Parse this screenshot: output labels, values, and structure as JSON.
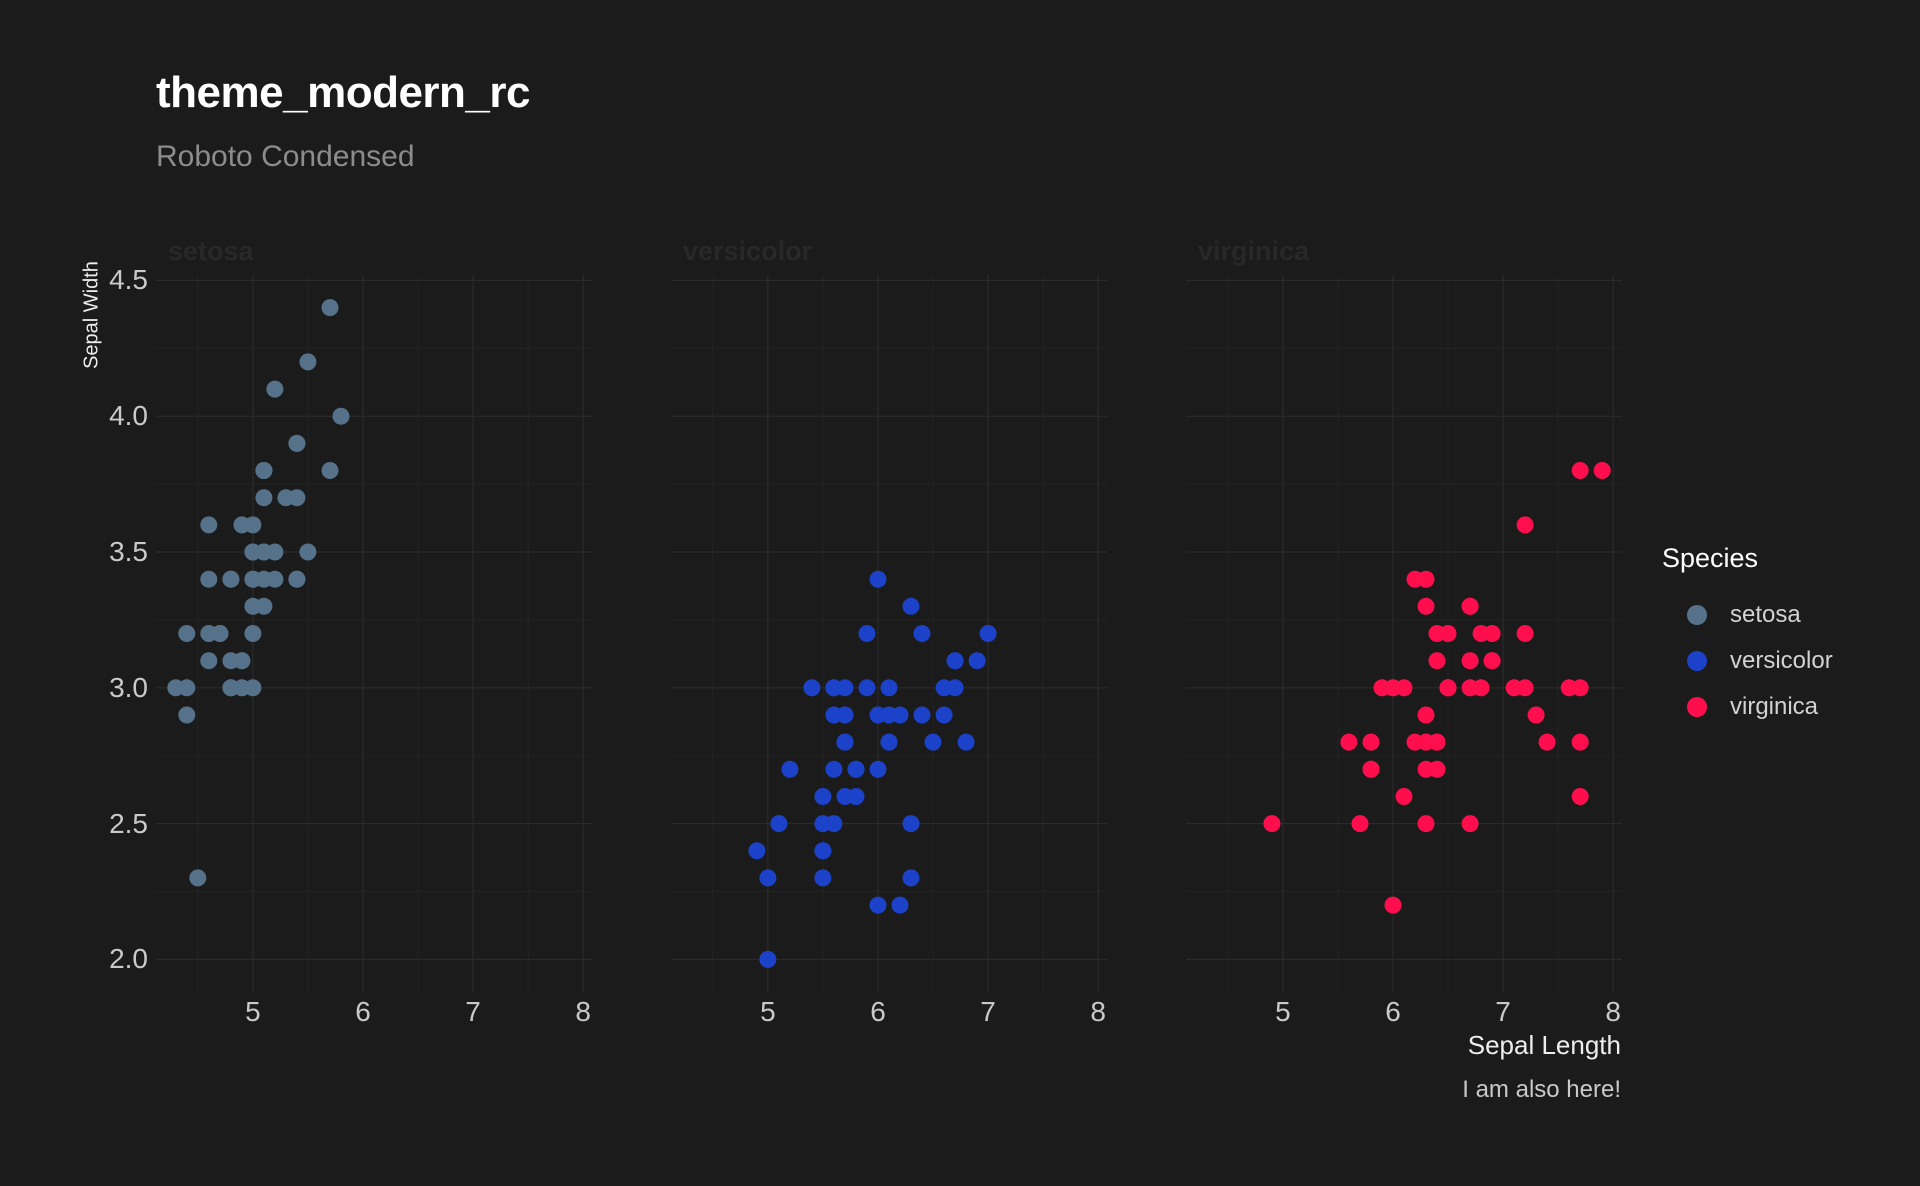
{
  "figure": {
    "title": "theme_modern_rc",
    "subtitle": "Roboto Condensed",
    "caption": "I am also here!"
  },
  "legend": {
    "title": "Species",
    "position": "right",
    "items": [
      {
        "label": "setosa",
        "color": "#56728a"
      },
      {
        "label": "versicolor",
        "color": "#1b42c9"
      },
      {
        "label": "virginica",
        "color": "#ff0e4d"
      }
    ]
  },
  "colors": {
    "background": "#1b1b1b",
    "grid_major": "#2d2d2d",
    "grid_minor": "#232323",
    "title": "#ffffff",
    "subtitle": "#8c8c8c",
    "axis_text": "#c9c9c9",
    "axis_title": "#ededed",
    "strip_text": "#282828",
    "caption": "#c9c9c9",
    "legend_title": "#ffffff",
    "legend_text": "#d2d2d2"
  },
  "chart_data": {
    "type": "scatter",
    "title": "theme_modern_rc",
    "subtitle": "Roboto Condensed",
    "caption": "I am also here!",
    "xlabel": "Sepal Length",
    "ylabel": "Sepal Width",
    "legend_title": "Species",
    "facets": [
      "setosa",
      "versicolor",
      "virginica"
    ],
    "grid": true,
    "legend_position": "right",
    "xlim": [
      4.12,
      8.08
    ],
    "ylim": [
      1.88,
      4.52
    ],
    "x_tick_values": [
      5,
      6,
      7,
      8
    ],
    "x_tick_labels": [
      "5",
      "6",
      "7",
      "8"
    ],
    "y_tick_values": [
      2.0,
      2.5,
      3.0,
      3.5,
      4.0,
      4.5
    ],
    "y_tick_labels": [
      "2.0",
      "2.5",
      "3.0",
      "3.5",
      "4.0",
      "4.5"
    ],
    "x_minor": [
      4.5,
      5.5,
      6.5,
      7.5
    ],
    "y_minor": [
      2.25,
      2.75,
      3.25,
      3.75,
      4.25
    ],
    "series": [
      {
        "name": "setosa",
        "color": "#56728a",
        "points": [
          [
            5.1,
            3.5
          ],
          [
            4.9,
            3.0
          ],
          [
            4.7,
            3.2
          ],
          [
            4.6,
            3.1
          ],
          [
            5.0,
            3.6
          ],
          [
            5.4,
            3.9
          ],
          [
            4.6,
            3.4
          ],
          [
            5.0,
            3.4
          ],
          [
            4.4,
            2.9
          ],
          [
            4.9,
            3.1
          ],
          [
            5.4,
            3.7
          ],
          [
            4.8,
            3.4
          ],
          [
            4.8,
            3.0
          ],
          [
            4.3,
            3.0
          ],
          [
            5.8,
            4.0
          ],
          [
            5.7,
            4.4
          ],
          [
            5.4,
            3.9
          ],
          [
            5.1,
            3.5
          ],
          [
            5.7,
            3.8
          ],
          [
            5.1,
            3.8
          ],
          [
            5.4,
            3.4
          ],
          [
            5.1,
            3.7
          ],
          [
            4.6,
            3.6
          ],
          [
            5.1,
            3.3
          ],
          [
            4.8,
            3.4
          ],
          [
            5.0,
            3.0
          ],
          [
            5.0,
            3.4
          ],
          [
            5.2,
            3.5
          ],
          [
            5.2,
            3.4
          ],
          [
            4.7,
            3.2
          ],
          [
            4.8,
            3.1
          ],
          [
            5.4,
            3.4
          ],
          [
            5.2,
            4.1
          ],
          [
            5.5,
            4.2
          ],
          [
            4.9,
            3.1
          ],
          [
            5.0,
            3.2
          ],
          [
            5.5,
            3.5
          ],
          [
            4.9,
            3.6
          ],
          [
            4.4,
            3.0
          ],
          [
            5.1,
            3.4
          ],
          [
            5.0,
            3.5
          ],
          [
            4.5,
            2.3
          ],
          [
            4.4,
            3.2
          ],
          [
            5.0,
            3.5
          ],
          [
            5.1,
            3.8
          ],
          [
            4.8,
            3.0
          ],
          [
            5.1,
            3.8
          ],
          [
            4.6,
            3.2
          ],
          [
            5.3,
            3.7
          ],
          [
            5.0,
            3.3
          ]
        ]
      },
      {
        "name": "versicolor",
        "color": "#1b42c9",
        "points": [
          [
            7.0,
            3.2
          ],
          [
            6.4,
            3.2
          ],
          [
            6.9,
            3.1
          ],
          [
            5.5,
            2.3
          ],
          [
            6.5,
            2.8
          ],
          [
            5.7,
            2.8
          ],
          [
            6.3,
            3.3
          ],
          [
            4.9,
            2.4
          ],
          [
            6.6,
            2.9
          ],
          [
            5.2,
            2.7
          ],
          [
            5.0,
            2.0
          ],
          [
            5.9,
            3.0
          ],
          [
            6.0,
            2.2
          ],
          [
            6.1,
            2.9
          ],
          [
            5.6,
            2.9
          ],
          [
            6.7,
            3.1
          ],
          [
            5.6,
            3.0
          ],
          [
            5.8,
            2.7
          ],
          [
            6.2,
            2.2
          ],
          [
            5.6,
            2.5
          ],
          [
            5.9,
            3.2
          ],
          [
            6.1,
            2.8
          ],
          [
            6.3,
            2.5
          ],
          [
            6.1,
            2.8
          ],
          [
            6.4,
            2.9
          ],
          [
            6.6,
            3.0
          ],
          [
            6.8,
            2.8
          ],
          [
            6.7,
            3.0
          ],
          [
            6.0,
            2.9
          ],
          [
            5.7,
            2.6
          ],
          [
            5.5,
            2.4
          ],
          [
            5.5,
            2.4
          ],
          [
            5.8,
            2.7
          ],
          [
            6.0,
            2.7
          ],
          [
            5.4,
            3.0
          ],
          [
            6.0,
            3.4
          ],
          [
            6.7,
            3.1
          ],
          [
            6.3,
            2.3
          ],
          [
            5.6,
            3.0
          ],
          [
            5.5,
            2.5
          ],
          [
            5.5,
            2.6
          ],
          [
            6.1,
            3.0
          ],
          [
            5.8,
            2.6
          ],
          [
            5.0,
            2.3
          ],
          [
            5.6,
            2.7
          ],
          [
            5.7,
            3.0
          ],
          [
            5.7,
            2.9
          ],
          [
            6.2,
            2.9
          ],
          [
            5.1,
            2.5
          ],
          [
            5.7,
            2.8
          ]
        ]
      },
      {
        "name": "virginica",
        "color": "#ff0e4d",
        "points": [
          [
            6.3,
            3.3
          ],
          [
            5.8,
            2.7
          ],
          [
            7.1,
            3.0
          ],
          [
            6.3,
            2.9
          ],
          [
            6.5,
            3.0
          ],
          [
            7.6,
            3.0
          ],
          [
            4.9,
            2.5
          ],
          [
            7.3,
            2.9
          ],
          [
            6.7,
            2.5
          ],
          [
            7.2,
            3.6
          ],
          [
            6.5,
            3.2
          ],
          [
            6.4,
            2.7
          ],
          [
            6.8,
            3.0
          ],
          [
            5.7,
            2.5
          ],
          [
            5.8,
            2.8
          ],
          [
            6.4,
            3.2
          ],
          [
            6.5,
            3.0
          ],
          [
            7.7,
            3.8
          ],
          [
            7.7,
            2.6
          ],
          [
            6.0,
            2.2
          ],
          [
            6.9,
            3.2
          ],
          [
            5.6,
            2.8
          ],
          [
            7.7,
            2.8
          ],
          [
            6.3,
            2.7
          ],
          [
            6.7,
            3.3
          ],
          [
            7.2,
            3.2
          ],
          [
            6.2,
            2.8
          ],
          [
            6.1,
            3.0
          ],
          [
            6.4,
            2.8
          ],
          [
            7.2,
            3.0
          ],
          [
            7.4,
            2.8
          ],
          [
            7.9,
            3.8
          ],
          [
            6.4,
            2.8
          ],
          [
            6.3,
            2.8
          ],
          [
            6.1,
            2.6
          ],
          [
            7.7,
            3.0
          ],
          [
            6.3,
            3.4
          ],
          [
            6.4,
            3.1
          ],
          [
            6.0,
            3.0
          ],
          [
            6.9,
            3.1
          ],
          [
            6.7,
            3.1
          ],
          [
            6.9,
            3.1
          ],
          [
            5.8,
            2.7
          ],
          [
            6.8,
            3.2
          ],
          [
            6.7,
            3.3
          ],
          [
            6.7,
            3.0
          ],
          [
            6.3,
            2.5
          ],
          [
            6.5,
            3.0
          ],
          [
            6.2,
            3.4
          ],
          [
            5.9,
            3.0
          ]
        ]
      }
    ]
  }
}
